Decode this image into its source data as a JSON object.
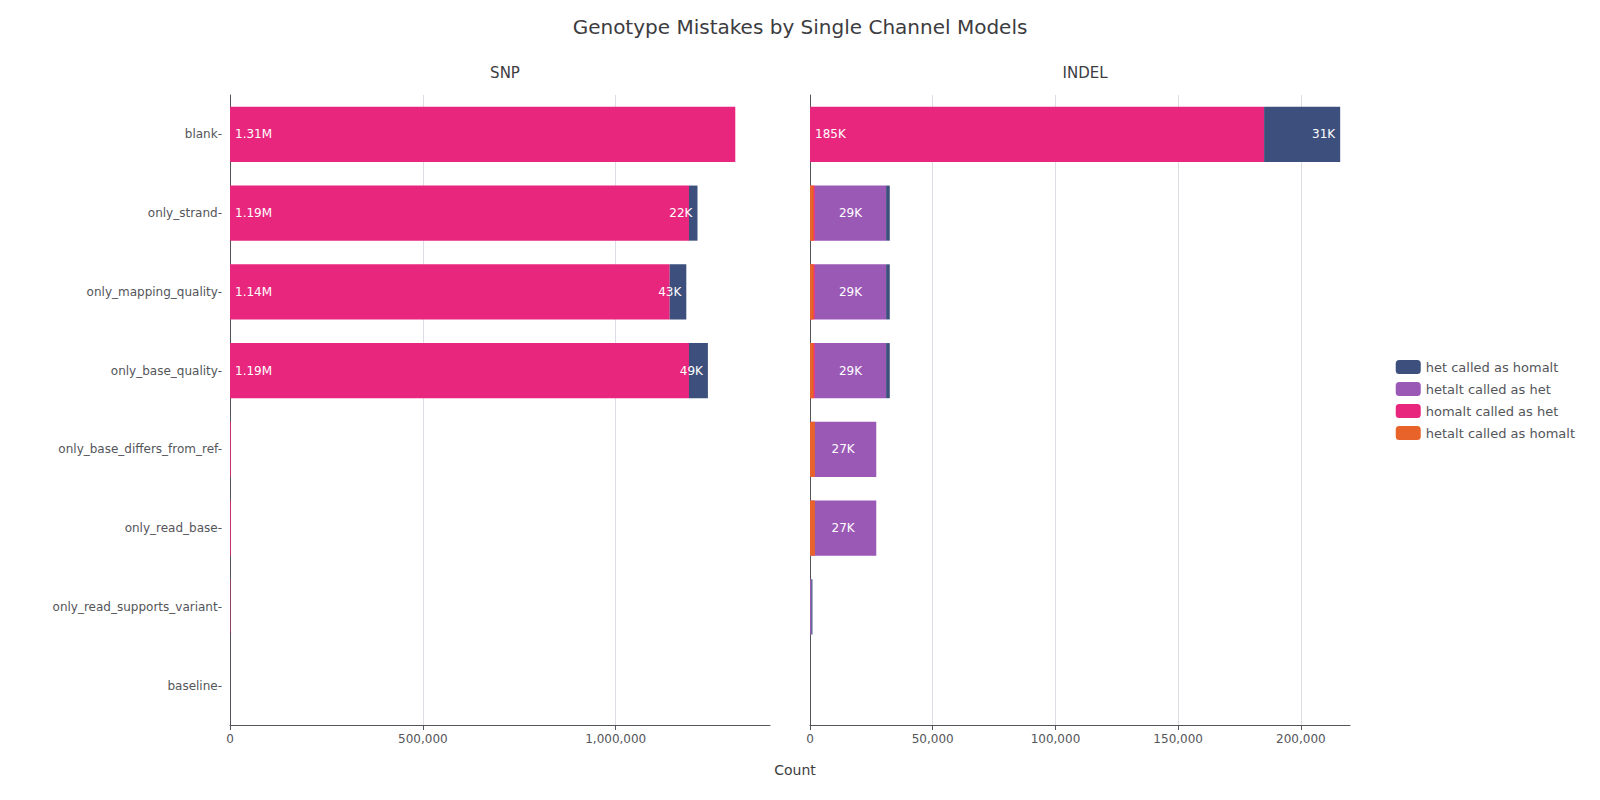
{
  "title": "Genotype Mistakes by Single Channel Models",
  "xlabel": "Count",
  "legend": "right",
  "chart_data": [
    {
      "type": "bar",
      "title": "SNP",
      "orientation": "horizontal",
      "stacked": true,
      "grid": true,
      "categories": [
        "baseline-",
        "only_read_supports_variant-",
        "only_read_base-",
        "only_base_differs_from_ref-",
        "only_base_quality-",
        "only_mapping_quality-",
        "only_strand-",
        "blank-"
      ],
      "series": [
        {
          "name": "het called as homalt",
          "color": "#3d4f7c",
          "values": [
            0,
            0,
            0,
            0,
            49000,
            43000,
            22000,
            0
          ],
          "value_labels": [
            null,
            null,
            null,
            null,
            "49K",
            "43K",
            "22K",
            null
          ]
        },
        {
          "name": "hetalt called as het",
          "color": "#9b59b6",
          "values": [
            0,
            0,
            0,
            0,
            0,
            0,
            0,
            0
          ]
        },
        {
          "name": "homalt called as het",
          "color": "#e8267d",
          "values": [
            0,
            1000,
            2000,
            2000,
            1190000,
            1140000,
            1190000,
            1310000
          ],
          "value_labels": [
            null,
            null,
            null,
            null,
            "1.19M",
            "1.14M",
            "1.19M",
            "1.31M"
          ]
        },
        {
          "name": "hetalt called as homalt",
          "color": "#e8632a",
          "stacked": false,
          "values": [
            0,
            0,
            0,
            0,
            0,
            0,
            0,
            0
          ]
        }
      ],
      "xlim": [
        0,
        1400000
      ],
      "xticks": [
        0,
        {
          "value": 500000,
          "label": "500,000"
        },
        {
          "value": 1000000,
          "label": "1,000,000"
        }
      ]
    },
    {
      "type": "bar",
      "title": "INDEL",
      "orientation": "horizontal",
      "stacked": true,
      "grid": true,
      "tick_labels": "x",
      "categories": [
        "baseline-",
        "only_read_supports_variant-",
        "only_read_base-",
        "only_base_differs_from_ref-",
        "only_base_quality-",
        "only_mapping_quality-",
        "only_strand-",
        "blank-"
      ],
      "series": [
        {
          "name": "het called as homalt",
          "color": "#3d4f7c",
          "values": [
            0,
            500,
            0,
            0,
            1500,
            1500,
            1500,
            31000
          ],
          "value_labels": [
            null,
            null,
            null,
            null,
            null,
            null,
            null,
            "31K"
          ]
        },
        {
          "name": "hetalt called as het",
          "color": "#9b59b6",
          "values": [
            0,
            500,
            27000,
            27000,
            29000,
            29000,
            29000,
            0
          ],
          "value_labels": [
            null,
            null,
            "27K",
            "27K",
            "29K",
            "29K",
            "29K",
            null
          ]
        },
        {
          "name": "homalt called as het",
          "color": "#e8267d",
          "values": [
            0,
            0,
            0,
            0,
            2000,
            2000,
            2000,
            185000
          ],
          "value_labels": [
            null,
            null,
            null,
            null,
            null,
            null,
            null,
            "185K"
          ]
        },
        {
          "name": "hetalt called as homalt",
          "color": "#e8632a",
          "stacked": false,
          "values": [
            0,
            0,
            2000,
            2000,
            1500,
            1500,
            1500,
            0
          ]
        }
      ],
      "xlim": [
        0,
        220000
      ],
      "xticks": [
        0,
        {
          "value": 50000,
          "label": "50,000"
        },
        {
          "value": 100000,
          "label": "100,000"
        },
        {
          "value": 150000,
          "label": "150,000"
        },
        {
          "value": 200000,
          "label": "200,000"
        }
      ]
    }
  ]
}
